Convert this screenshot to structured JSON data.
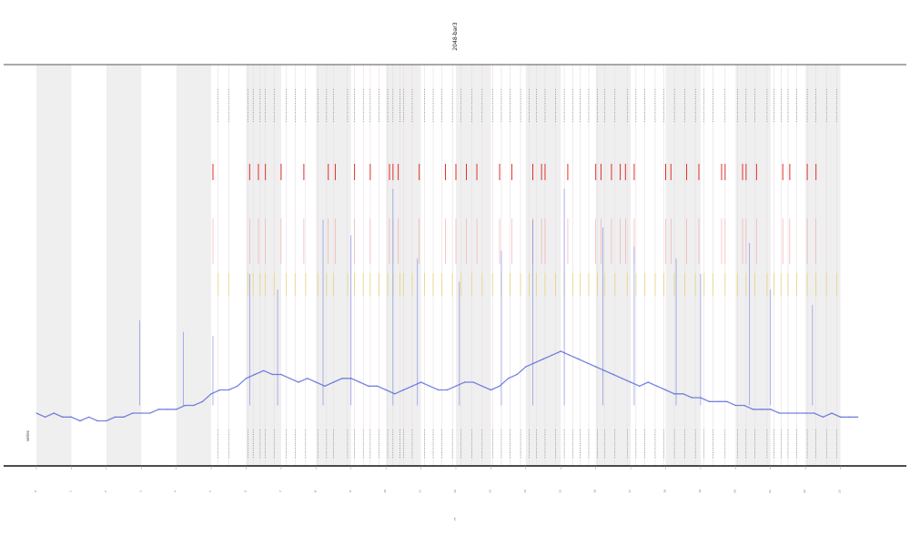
{
  "chart_data": {
    "type": "line",
    "title": "2048-bar3",
    "xlabel": "t",
    "ylabel": "",
    "legend_text": "series",
    "x_ticks": [
      "0",
      "1",
      "2",
      "3",
      "4",
      "5",
      "6",
      "7",
      "8",
      "9",
      "10",
      "11",
      "12",
      "13",
      "14",
      "15",
      "16",
      "17",
      "18",
      "19",
      "20",
      "21",
      "22",
      "23"
    ],
    "xlim": [
      0,
      24
    ],
    "ylim": [
      0,
      100
    ],
    "grid": false,
    "shaded_bands": [
      [
        0,
        1
      ],
      [
        2,
        3
      ],
      [
        4,
        5
      ],
      [
        6,
        7
      ],
      [
        8,
        9
      ],
      [
        10,
        11
      ],
      [
        12,
        13
      ],
      [
        14,
        15
      ],
      [
        16,
        17
      ],
      [
        18,
        19
      ],
      [
        20,
        21
      ],
      [
        22,
        23
      ]
    ],
    "series": [
      {
        "color": "#4a5cd6",
        "points": [
          [
            0.0,
            12
          ],
          [
            0.25,
            11
          ],
          [
            0.5,
            12
          ],
          [
            0.75,
            11
          ],
          [
            1.0,
            11
          ],
          [
            1.25,
            10
          ],
          [
            1.5,
            11
          ],
          [
            1.75,
            10
          ],
          [
            2.0,
            10
          ],
          [
            2.25,
            11
          ],
          [
            2.5,
            11
          ],
          [
            2.75,
            12
          ],
          [
            3.0,
            12
          ],
          [
            3.25,
            12
          ],
          [
            3.5,
            13
          ],
          [
            3.75,
            13
          ],
          [
            4.0,
            13
          ],
          [
            4.25,
            14
          ],
          [
            4.5,
            14
          ],
          [
            4.75,
            15
          ],
          [
            5.0,
            17
          ],
          [
            5.25,
            18
          ],
          [
            5.5,
            18
          ],
          [
            5.75,
            19
          ],
          [
            6.0,
            21
          ],
          [
            6.25,
            22
          ],
          [
            6.5,
            23
          ],
          [
            6.75,
            22
          ],
          [
            7.0,
            22
          ],
          [
            7.25,
            21
          ],
          [
            7.5,
            20
          ],
          [
            7.75,
            21
          ],
          [
            8.0,
            20
          ],
          [
            8.25,
            19
          ],
          [
            8.5,
            20
          ],
          [
            8.75,
            21
          ],
          [
            9.0,
            21
          ],
          [
            9.25,
            20
          ],
          [
            9.5,
            19
          ],
          [
            9.75,
            19
          ],
          [
            10.0,
            18
          ],
          [
            10.25,
            17
          ],
          [
            10.5,
            18
          ],
          [
            10.75,
            19
          ],
          [
            11.0,
            20
          ],
          [
            11.25,
            19
          ],
          [
            11.5,
            18
          ],
          [
            11.75,
            18
          ],
          [
            12.0,
            19
          ],
          [
            12.25,
            20
          ],
          [
            12.5,
            20
          ],
          [
            12.75,
            19
          ],
          [
            13.0,
            18
          ],
          [
            13.25,
            19
          ],
          [
            13.5,
            21
          ],
          [
            13.75,
            22
          ],
          [
            14.0,
            24
          ],
          [
            14.25,
            25
          ],
          [
            14.5,
            26
          ],
          [
            14.75,
            27
          ],
          [
            15.0,
            28
          ],
          [
            15.25,
            27
          ],
          [
            15.5,
            26
          ],
          [
            15.75,
            25
          ],
          [
            16.0,
            24
          ],
          [
            16.25,
            23
          ],
          [
            16.5,
            22
          ],
          [
            16.75,
            21
          ],
          [
            17.0,
            20
          ],
          [
            17.25,
            19
          ],
          [
            17.5,
            20
          ],
          [
            17.75,
            19
          ],
          [
            18.0,
            18
          ],
          [
            18.25,
            17
          ],
          [
            18.5,
            17
          ],
          [
            18.75,
            16
          ],
          [
            19.0,
            16
          ],
          [
            19.25,
            15
          ],
          [
            19.5,
            15
          ],
          [
            19.75,
            15
          ],
          [
            20.0,
            14
          ],
          [
            20.25,
            14
          ],
          [
            20.5,
            13
          ],
          [
            20.75,
            13
          ],
          [
            21.0,
            13
          ],
          [
            21.25,
            12
          ],
          [
            21.5,
            12
          ],
          [
            21.75,
            12
          ],
          [
            22.0,
            12
          ],
          [
            22.25,
            12
          ],
          [
            22.5,
            11
          ],
          [
            22.75,
            12
          ],
          [
            23.0,
            11
          ],
          [
            23.25,
            11
          ],
          [
            23.5,
            11
          ]
        ]
      }
    ],
    "spikes": [
      {
        "x": 2.95,
        "y": 36
      },
      {
        "x": 4.2,
        "y": 33
      },
      {
        "x": 5.05,
        "y": 32
      },
      {
        "x": 6.1,
        "y": 48
      },
      {
        "x": 6.9,
        "y": 44
      },
      {
        "x": 8.2,
        "y": 62
      },
      {
        "x": 9.0,
        "y": 58
      },
      {
        "x": 10.2,
        "y": 70
      },
      {
        "x": 10.9,
        "y": 52
      },
      {
        "x": 12.1,
        "y": 46
      },
      {
        "x": 13.3,
        "y": 54
      },
      {
        "x": 14.2,
        "y": 62
      },
      {
        "x": 15.1,
        "y": 70
      },
      {
        "x": 16.2,
        "y": 60
      },
      {
        "x": 17.1,
        "y": 55
      },
      {
        "x": 18.3,
        "y": 52
      },
      {
        "x": 19.0,
        "y": 48
      },
      {
        "x": 20.4,
        "y": 56
      },
      {
        "x": 21.0,
        "y": 44
      },
      {
        "x": 22.2,
        "y": 40
      }
    ],
    "event_lines": {
      "x": [
        5.2,
        5.5,
        6.05,
        6.2,
        6.4,
        6.55,
        6.8,
        7.15,
        7.4,
        7.7,
        8.05,
        8.3,
        8.5,
        8.9,
        9.1,
        9.35,
        9.55,
        9.8,
        10.05,
        10.2,
        10.4,
        10.5,
        10.75,
        11.1,
        11.35,
        11.6,
        11.9,
        12.15,
        12.45,
        12.75,
        13.05,
        13.3,
        13.55,
        13.85,
        14.1,
        14.3,
        14.55,
        14.85,
        15.1,
        15.35,
        15.55,
        15.8,
        16.05,
        16.25,
        16.55,
        16.9,
        17.15,
        17.4,
        17.7,
        17.95,
        18.25,
        18.55,
        18.85,
        19.1,
        19.35,
        19.7,
        20.05,
        20.3,
        20.55,
        20.9,
        21.1,
        21.3,
        21.5,
        21.75,
        22.05,
        22.3,
        22.6,
        22.9
      ],
      "red_markers": [
        5.05,
        6.1,
        6.35,
        6.55,
        7.0,
        7.65,
        8.35,
        8.55,
        9.1,
        9.55,
        10.1,
        10.2,
        10.35,
        10.95,
        11.7,
        12.0,
        12.3,
        12.6,
        13.25,
        13.6,
        14.2,
        14.45,
        14.55,
        15.2,
        16.0,
        16.15,
        16.45,
        16.7,
        16.85,
        17.1,
        18.0,
        18.15,
        18.6,
        18.95,
        19.6,
        19.7,
        20.2,
        20.3,
        20.6,
        21.35,
        21.55,
        22.05,
        22.3
      ]
    }
  }
}
